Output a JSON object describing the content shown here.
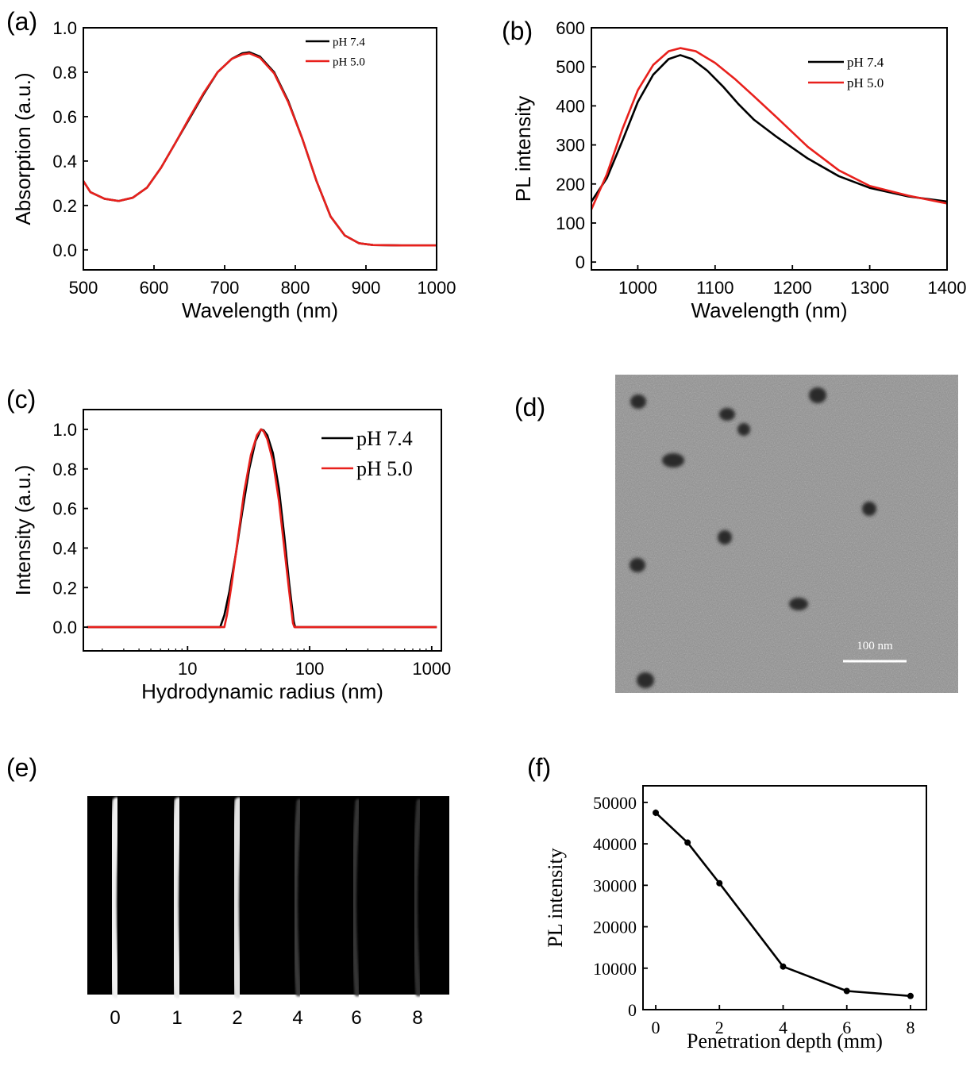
{
  "panels": {
    "a": {
      "label": "(a)"
    },
    "b": {
      "label": "(b)"
    },
    "c": {
      "label": "(c)"
    },
    "d": {
      "label": "(d)",
      "scale_bar": "100 nm"
    },
    "e": {
      "label": "(e)",
      "lane_labels": [
        "0",
        "1",
        "2",
        "4",
        "6",
        "8"
      ],
      "lane_brightness": [
        1.0,
        0.97,
        0.93,
        0.12,
        0.09,
        0.07
      ]
    },
    "f": {
      "label": "(f)"
    }
  },
  "colors": {
    "black_series": "#000000",
    "red_series": "#e8201c"
  },
  "chart_data": [
    {
      "id": "a",
      "type": "line",
      "xlabel": "Wavelength (nm)",
      "ylabel": "Absorption (a.u.)",
      "xlim": [
        500,
        1000
      ],
      "ylim": [
        -0.09,
        1.0
      ],
      "xticks": [
        500,
        600,
        700,
        800,
        900,
        1000
      ],
      "yticks": [
        0.0,
        0.2,
        0.4,
        0.6,
        0.8,
        1.0
      ],
      "ytick_labels": [
        "0.0",
        "0.2",
        "0.4",
        "0.6",
        "0.8",
        "1.0"
      ],
      "legend_position": "top-right",
      "series": [
        {
          "name": "pH 7.4",
          "color": "#000000",
          "x": [
            500,
            510,
            530,
            550,
            570,
            590,
            610,
            630,
            650,
            670,
            690,
            710,
            725,
            735,
            750,
            770,
            790,
            810,
            830,
            850,
            870,
            890,
            910,
            950,
            1000
          ],
          "y": [
            0.31,
            0.26,
            0.23,
            0.22,
            0.235,
            0.28,
            0.37,
            0.48,
            0.59,
            0.7,
            0.8,
            0.86,
            0.885,
            0.89,
            0.87,
            0.8,
            0.67,
            0.5,
            0.31,
            0.15,
            0.065,
            0.03,
            0.022,
            0.02,
            0.02
          ]
        },
        {
          "name": "pH 5.0",
          "color": "#e8201c",
          "x": [
            500,
            510,
            530,
            550,
            570,
            590,
            610,
            630,
            650,
            670,
            690,
            710,
            725,
            735,
            750,
            770,
            790,
            810,
            830,
            850,
            870,
            890,
            910,
            950,
            1000
          ],
          "y": [
            0.31,
            0.26,
            0.23,
            0.22,
            0.235,
            0.28,
            0.37,
            0.48,
            0.595,
            0.705,
            0.8,
            0.86,
            0.88,
            0.885,
            0.865,
            0.795,
            0.665,
            0.5,
            0.31,
            0.15,
            0.065,
            0.03,
            0.022,
            0.02,
            0.02
          ]
        }
      ]
    },
    {
      "id": "b",
      "type": "line",
      "xlabel": "Wavelength (nm)",
      "ylabel": "PL intensity",
      "xlim": [
        940,
        1400
      ],
      "ylim": [
        -20,
        600
      ],
      "xticks": [
        1000,
        1100,
        1200,
        1300,
        1400
      ],
      "yticks": [
        0,
        100,
        200,
        300,
        400,
        500,
        600
      ],
      "ytick_labels": [
        "0",
        "100",
        "200",
        "300",
        "400",
        "500",
        "600"
      ],
      "legend_position": "top-right",
      "series": [
        {
          "name": "pH 7.4",
          "color": "#000000",
          "x": [
            940,
            960,
            980,
            1000,
            1020,
            1040,
            1055,
            1070,
            1090,
            1110,
            1130,
            1150,
            1180,
            1220,
            1260,
            1300,
            1350,
            1400
          ],
          "y": [
            155,
            215,
            310,
            410,
            480,
            520,
            530,
            520,
            490,
            450,
            405,
            365,
            320,
            265,
            220,
            190,
            168,
            155
          ]
        },
        {
          "name": "pH 5.0",
          "color": "#e8201c",
          "x": [
            940,
            960,
            980,
            1000,
            1020,
            1040,
            1055,
            1075,
            1100,
            1125,
            1150,
            1180,
            1220,
            1260,
            1300,
            1350,
            1400
          ],
          "y": [
            135,
            225,
            340,
            440,
            505,
            540,
            548,
            540,
            510,
            470,
            425,
            370,
            295,
            235,
            195,
            170,
            150
          ]
        }
      ]
    },
    {
      "id": "c",
      "type": "line",
      "xlabel": "Hydrodynamic radius (nm)",
      "ylabel": "Intensity (a.u.)",
      "xscale": "log",
      "xlim": [
        1.4,
        1200
      ],
      "ylim": [
        -0.12,
        1.1
      ],
      "xticks": [
        10,
        100,
        1000
      ],
      "yticks": [
        0.0,
        0.2,
        0.4,
        0.6,
        0.8,
        1.0
      ],
      "ytick_labels": [
        "0.0",
        "0.2",
        "0.4",
        "0.6",
        "0.8",
        "1.0"
      ],
      "legend_position": "top-right",
      "series": [
        {
          "name": "pH 7.4",
          "color": "#000000",
          "x": [
            1.5,
            18.5,
            20,
            22,
            25,
            28,
            32,
            36,
            40,
            42,
            45,
            50,
            56,
            62,
            68,
            74,
            76,
            1100
          ],
          "y": [
            0,
            0,
            0.06,
            0.18,
            0.38,
            0.58,
            0.8,
            0.94,
            1.0,
            0.995,
            0.97,
            0.88,
            0.7,
            0.46,
            0.22,
            0.03,
            0,
            0
          ]
        },
        {
          "name": "pH 5.0",
          "color": "#e8201c",
          "x": [
            1.5,
            20,
            21,
            23,
            26,
            29,
            33,
            37,
            40,
            42,
            45,
            50,
            56,
            62,
            68,
            73,
            75,
            1100
          ],
          "y": [
            0,
            0,
            0.06,
            0.22,
            0.46,
            0.68,
            0.87,
            0.97,
            1.0,
            0.99,
            0.95,
            0.84,
            0.64,
            0.4,
            0.18,
            0.02,
            0,
            0
          ]
        }
      ]
    },
    {
      "id": "f",
      "type": "line",
      "xlabel": "Penetration depth (mm)",
      "ylabel": "PL intensity",
      "xlim": [
        -0.4,
        8.5
      ],
      "ylim": [
        0,
        54000
      ],
      "xticks": [
        0,
        2,
        4,
        6,
        8
      ],
      "yticks": [
        0,
        10000,
        20000,
        30000,
        40000,
        50000
      ],
      "ytick_labels": [
        "0",
        "10000",
        "20000",
        "30000",
        "40000",
        "50000"
      ],
      "series": [
        {
          "name": "",
          "color": "#000000",
          "x": [
            0,
            1,
            2,
            4,
            6,
            8
          ],
          "y": [
            47500,
            40300,
            30500,
            10400,
            4500,
            3300
          ],
          "error": [
            800,
            500,
            400,
            300,
            200,
            200
          ]
        }
      ]
    }
  ]
}
